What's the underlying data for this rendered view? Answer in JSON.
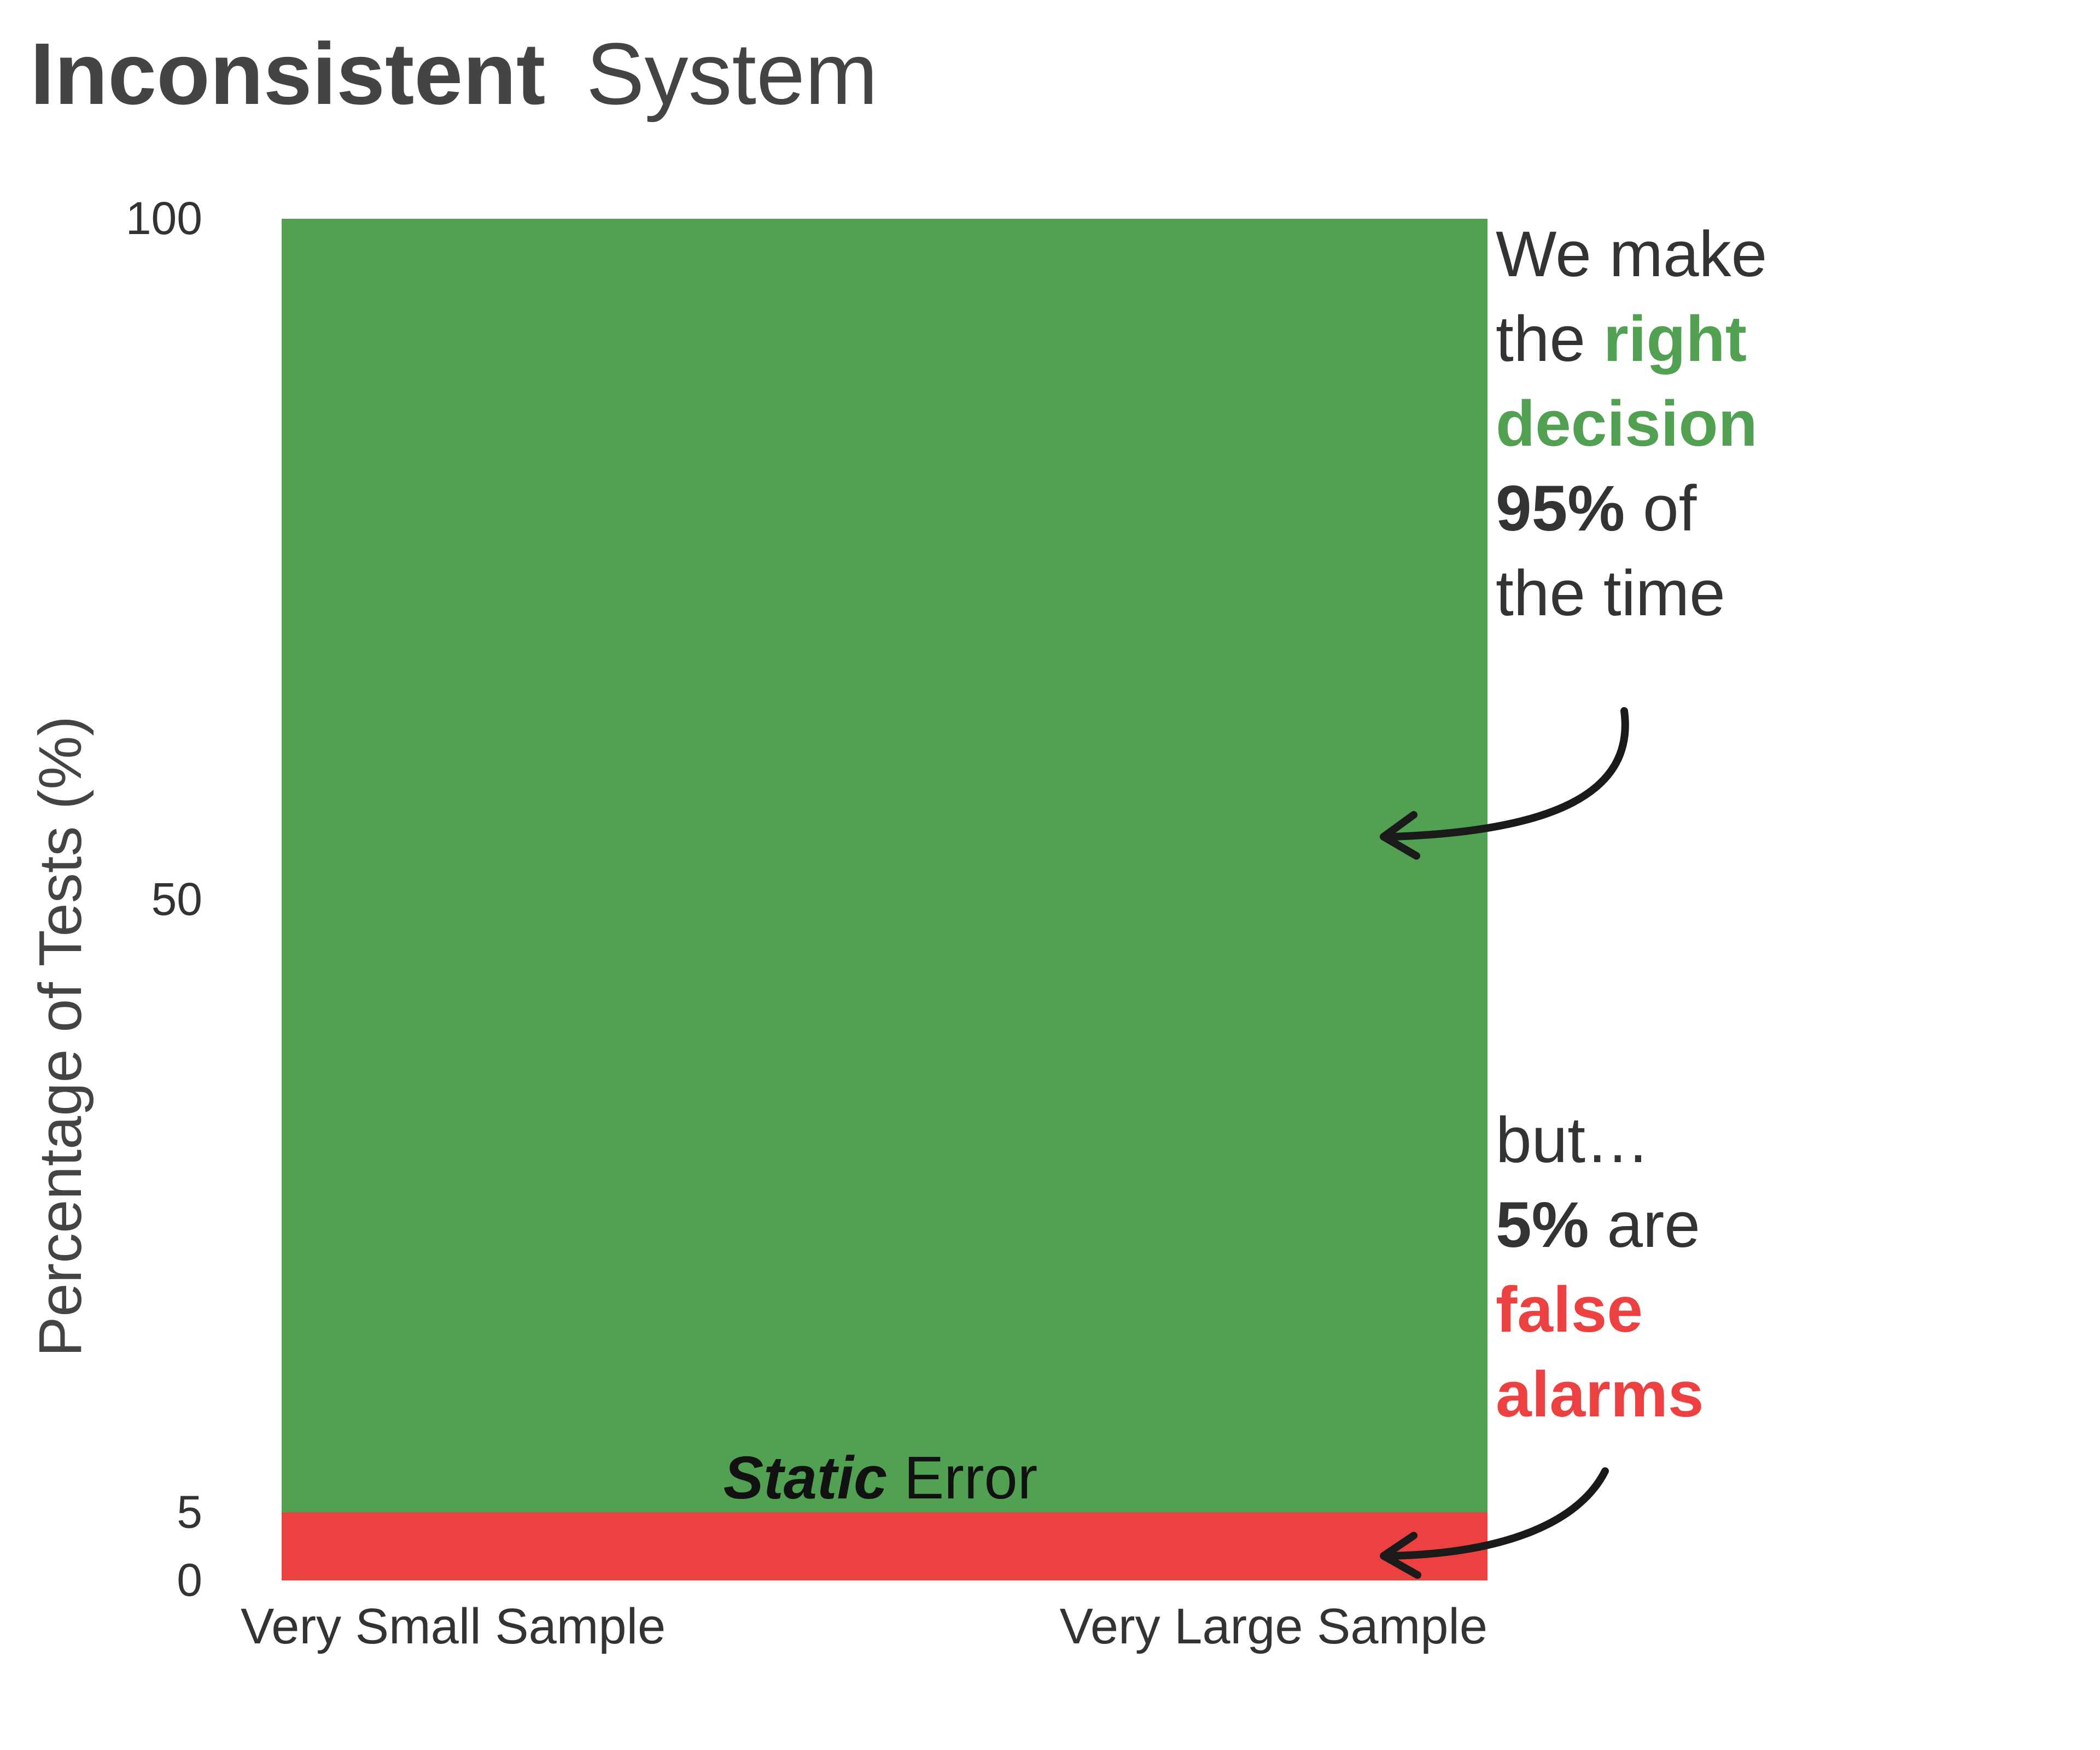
{
  "title": {
    "bold": "Inconsistent",
    "regular": "System"
  },
  "colors": {
    "correct": "#52a052",
    "error": "#ec4140",
    "text": "#333333",
    "title": "#444444",
    "arrow": "#1a1a1a"
  },
  "chart_data": {
    "type": "area",
    "title": "Inconsistent System",
    "xlabel": "",
    "ylabel": "Percentage of Tests (%)",
    "categories": [
      "Very Small Sample",
      "Very Large Sample"
    ],
    "ylim": [
      0,
      100
    ],
    "yticks": [
      0,
      5,
      50,
      100
    ],
    "series": [
      {
        "name": "",
        "color": "#ec4140",
        "values": [
          5,
          5
        ]
      },
      {
        "name": "",
        "color": "#52a052",
        "values": [
          95,
          95
        ]
      }
    ],
    "grid": false
  },
  "annotations": {
    "error_label": {
      "bold": "Static",
      "regular": " Error"
    },
    "right": [
      [
        "We make"
      ],
      [
        "the ",
        {
          "t": "right",
          "c": "correct"
        }
      ],
      [
        {
          "t": "decision",
          "c": "correct"
        }
      ],
      [
        {
          "t": "95%",
          "c": "bold"
        },
        " of"
      ],
      [
        "the time"
      ]
    ],
    "but": [
      [
        "but…"
      ],
      [
        {
          "t": "5%",
          "c": "bold"
        },
        " are"
      ],
      [
        {
          "t": "false",
          "c": "error"
        }
      ],
      [
        {
          "t": "alarms",
          "c": "error"
        }
      ]
    ]
  }
}
